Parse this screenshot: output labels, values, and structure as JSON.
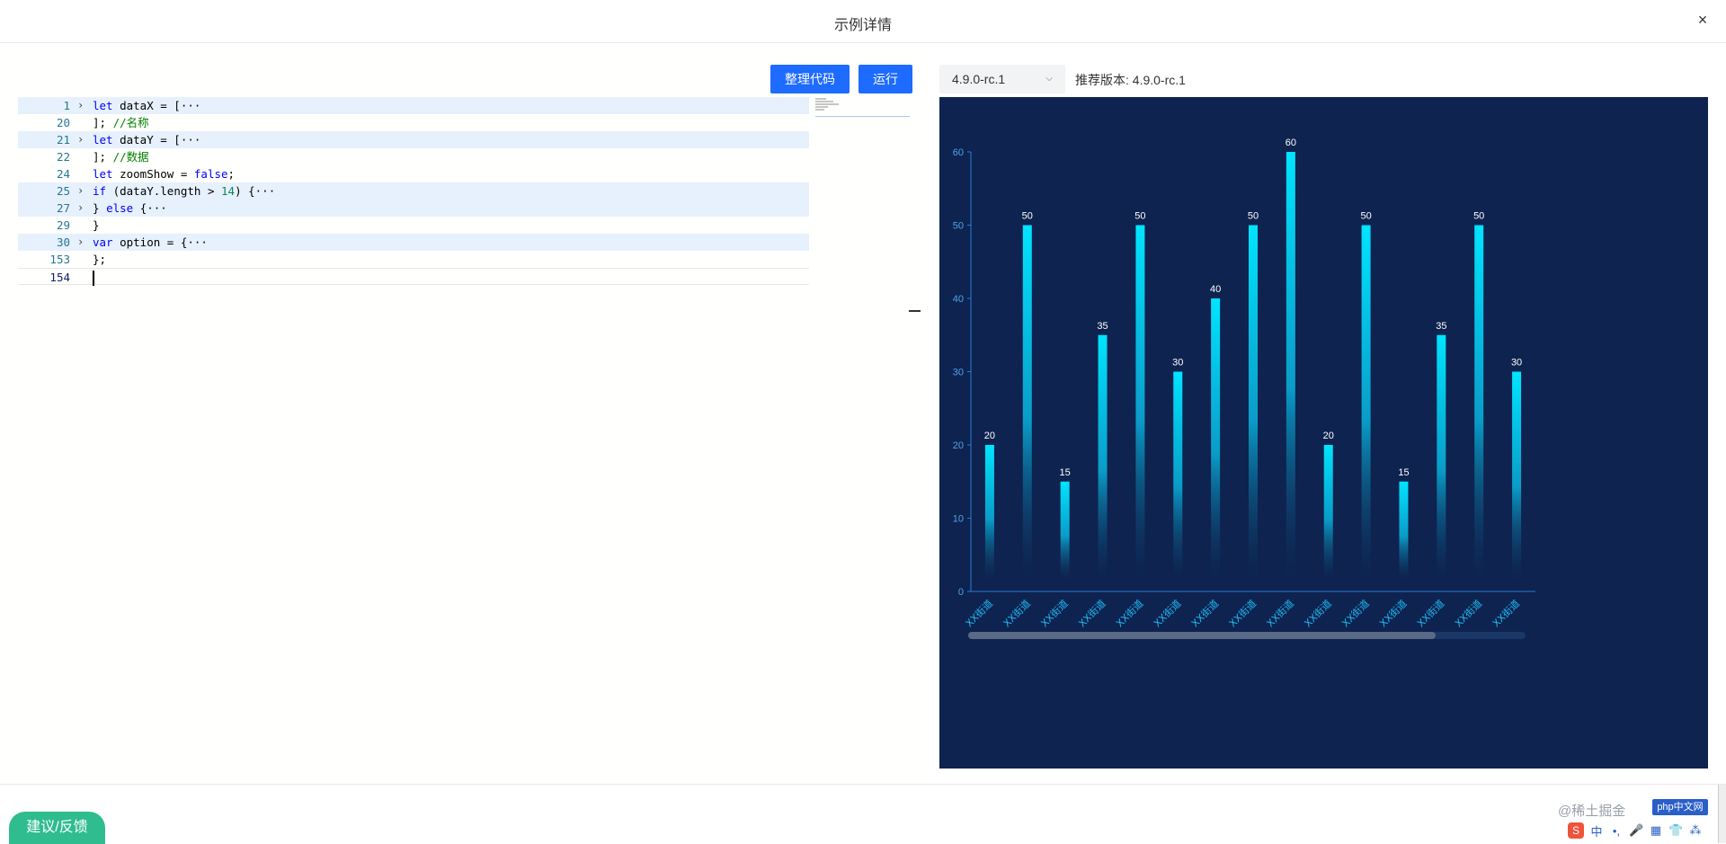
{
  "window": {
    "title": "示例详情",
    "close_glyph": "×"
  },
  "toolbar": {
    "format_label": "整理代码",
    "run_label": "运行"
  },
  "editor": {
    "lines": [
      {
        "num": "1",
        "fold": "›",
        "segments": [
          {
            "t": "let",
            "c": "kw"
          },
          {
            "t": " dataX = [",
            "c": ""
          },
          {
            "t": "···",
            "c": ""
          }
        ],
        "hl": true
      },
      {
        "num": "20",
        "fold": "",
        "segments": [
          {
            "t": "]; ",
            "c": ""
          },
          {
            "t": "//名称",
            "c": "cm"
          }
        ],
        "hl": false
      },
      {
        "num": "21",
        "fold": "›",
        "segments": [
          {
            "t": "let",
            "c": "kw"
          },
          {
            "t": " dataY = [",
            "c": ""
          },
          {
            "t": "···",
            "c": ""
          }
        ],
        "hl": true
      },
      {
        "num": "22",
        "fold": "",
        "segments": [
          {
            "t": "]; ",
            "c": ""
          },
          {
            "t": "//数据",
            "c": "cm"
          }
        ],
        "hl": false
      },
      {
        "num": "24",
        "fold": "",
        "segments": [
          {
            "t": "let",
            "c": "kw"
          },
          {
            "t": " zoomShow = ",
            "c": ""
          },
          {
            "t": "false",
            "c": "kw"
          },
          {
            "t": ";",
            "c": ""
          }
        ],
        "hl": false
      },
      {
        "num": "25",
        "fold": "›",
        "segments": [
          {
            "t": "if",
            "c": "kw"
          },
          {
            "t": " (dataY.length > ",
            "c": ""
          },
          {
            "t": "14",
            "c": "num"
          },
          {
            "t": ") {",
            "c": ""
          },
          {
            "t": "···",
            "c": ""
          }
        ],
        "hl": true
      },
      {
        "num": "27",
        "fold": "›",
        "segments": [
          {
            "t": "} ",
            "c": ""
          },
          {
            "t": "else",
            "c": "kw"
          },
          {
            "t": " {",
            "c": ""
          },
          {
            "t": "···",
            "c": ""
          }
        ],
        "hl": true
      },
      {
        "num": "29",
        "fold": "",
        "segments": [
          {
            "t": "}",
            "c": ""
          }
        ],
        "hl": false
      },
      {
        "num": "30",
        "fold": "›",
        "segments": [
          {
            "t": "var",
            "c": "kw"
          },
          {
            "t": " option = {",
            "c": ""
          },
          {
            "t": "···",
            "c": ""
          }
        ],
        "hl": true
      },
      {
        "num": "153",
        "fold": "",
        "segments": [
          {
            "t": "};",
            "c": ""
          }
        ],
        "hl": false
      },
      {
        "num": "154",
        "fold": "",
        "segments": [],
        "hl": false,
        "current": true
      }
    ]
  },
  "version": {
    "selected": "4.9.0-rc.1",
    "recommend_text": "推荐版本: 4.9.0-rc.1"
  },
  "colors": {
    "chart_bg": "#0e2350",
    "bar_top": "#00e4ff",
    "bar_bottom": "#0e2350",
    "axis": "#2c7bd4",
    "tick": "#4fa3e8",
    "label": "#ffffff",
    "x_label": "#1fb8f0",
    "feedback": "#2fbc8f",
    "button": "#1e6bff"
  },
  "chart_data": {
    "type": "bar",
    "categories": [
      "XX街道",
      "XX街道",
      "XX街道",
      "XX街道",
      "XX街道",
      "XX街道",
      "XX街道",
      "XX街道",
      "XX街道",
      "XX街道",
      "XX街道",
      "XX街道",
      "XX街道",
      "XX街道",
      "XX街道"
    ],
    "values": [
      20,
      50,
      15,
      35,
      50,
      30,
      40,
      50,
      60,
      20,
      50,
      15,
      35,
      50,
      30
    ],
    "y_ticks": [
      0,
      10,
      20,
      30,
      40,
      50,
      60
    ],
    "ylim": [
      0,
      60
    ],
    "data_labels": true,
    "grid": false,
    "datazoom_slider": true,
    "title": "",
    "xlabel": "",
    "ylabel": ""
  },
  "footer": {
    "feedback_label": "建议/反馈",
    "watermark": "@稀土掘金",
    "badge": "php中文网",
    "ime": {
      "logo": "S",
      "items": [
        "中",
        "•,",
        "🎤",
        "▦",
        "👕",
        "⁂"
      ]
    }
  }
}
